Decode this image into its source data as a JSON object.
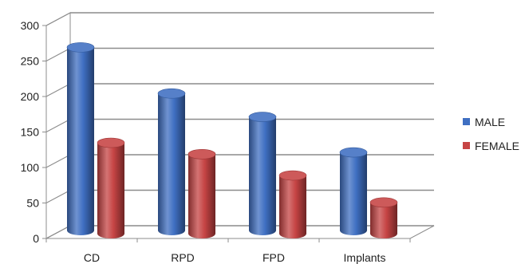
{
  "chart_data": {
    "type": "bar",
    "title": "",
    "xlabel": "",
    "ylabel": "",
    "categories": [
      "CD",
      "RPD",
      "FPD",
      "Implants"
    ],
    "series": [
      {
        "name": "MALE",
        "values": [
          258,
          193,
          160,
          110
        ],
        "color": "#3f6fc2"
      },
      {
        "name": "FEMALE",
        "values": [
          128,
          112,
          82,
          44
        ],
        "color": "#c64444"
      }
    ],
    "ylim": [
      0,
      300
    ],
    "yticks": [
      "0",
      "50",
      "100",
      "150",
      "200",
      "250",
      "300"
    ],
    "grid": true,
    "legend_position": "right",
    "style": "3d-cylinder"
  }
}
